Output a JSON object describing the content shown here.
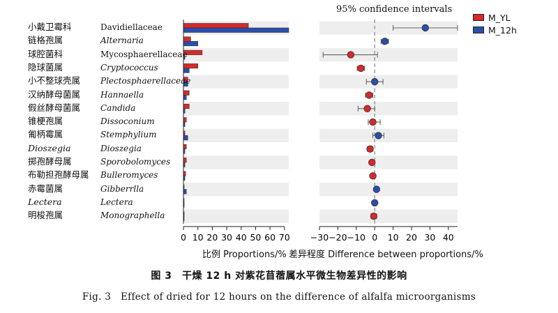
{
  "chart_data": {
    "type": "bar",
    "genera_cn": [
      "小戴卫霉科",
      "链格孢属",
      "球腔菌科",
      "隐球菌属",
      "小不整球壳属",
      "汉纳酵母菌属",
      "假丝酵母菌属",
      "锥梗孢属",
      "匍柄霉属",
      "Dioszegia",
      "掷孢酵母属",
      "布勒担孢酵母属",
      "赤霉菌属",
      "Lectera",
      "明梭孢属"
    ],
    "genera_latin": [
      "Davidiellaceae",
      "Alternaria",
      "Mycosphaerellaceae",
      "Cryptococcus",
      "Plectosphaerellaceae",
      "Hannaella",
      "Candida",
      "Dissoconium",
      "Stemphylium",
      "Dioszegia",
      "Sporobolomyces",
      "Bulleromyces",
      "Gibberrlla",
      "Lectera",
      "Monographella"
    ],
    "latin_italic": [
      false,
      true,
      false,
      true,
      true,
      true,
      true,
      true,
      true,
      true,
      true,
      true,
      true,
      true,
      true
    ],
    "cn_italic": [
      false,
      false,
      false,
      false,
      false,
      false,
      false,
      false,
      false,
      true,
      false,
      false,
      false,
      true,
      false
    ],
    "series": [
      {
        "name": "M_YL",
        "color": "#d62a2a",
        "values": [
          45,
          5,
          13,
          10,
          3,
          4,
          4,
          2,
          1,
          2,
          2,
          1.5,
          0.5,
          0.3,
          0.5
        ]
      },
      {
        "name": "M_12h",
        "color": "#2b4ea8",
        "values": [
          73,
          10,
          1,
          4,
          3,
          2,
          1,
          1,
          3,
          1,
          1,
          1,
          2,
          0.5,
          0.3
        ]
      }
    ],
    "proportions_axis": {
      "label": "比例 Proportions/%",
      "ticks": [
        0,
        10,
        20,
        30,
        40,
        50,
        60,
        70
      ],
      "range": [
        0,
        73
      ]
    },
    "difference": {
      "title": "95% confidence intervals",
      "label": "差异程度 Difference between proportions/%",
      "ticks": [
        -30,
        -20,
        -10,
        0,
        10,
        20,
        30,
        40
      ],
      "range": [
        -30,
        45
      ],
      "values": [
        27.5,
        5.5,
        -13,
        -7.5,
        0,
        -3,
        -4,
        -1,
        2,
        -2.5,
        -1.5,
        -1,
        1,
        0,
        -0.5
      ],
      "ci_low": [
        10,
        3.5,
        -28,
        -9.5,
        -4.5,
        -5,
        -9,
        -3.5,
        -1,
        -4,
        -2.5,
        -2,
        0,
        -1,
        -2
      ],
      "ci_high": [
        45,
        7.5,
        1.5,
        -5.5,
        4.5,
        -1,
        0,
        3,
        5,
        -1,
        -0.5,
        0,
        2,
        1,
        1
      ],
      "favored": [
        "M_12h",
        "M_12h",
        "M_YL",
        "M_YL",
        "M_12h",
        "M_YL",
        "M_YL",
        "M_YL",
        "M_12h",
        "M_YL",
        "M_YL",
        "M_YL",
        "M_12h",
        "M_12h",
        "M_YL"
      ]
    },
    "legend_position": "top-right",
    "grid": false
  },
  "caption": {
    "cn": "图 3　干燥 12 h 对紫花苜蓿属水平微生物差异性的影响",
    "en": "Fig. 3　Effect of dried for 12 hours on the difference of alfalfa microorganisms"
  }
}
